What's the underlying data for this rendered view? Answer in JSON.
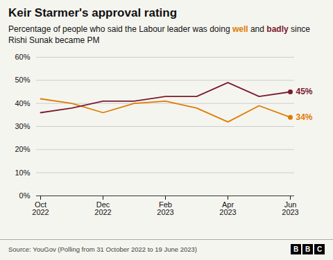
{
  "chart_data": {
    "type": "line",
    "title": "Keir Starmer's approval rating",
    "subtitle": "Percentage of people who said the Labour leader was doing well and badly since Rishi Sunak became PM",
    "source": "Source: YouGov (Polling from 31 October 2022 to 19 June 2023)",
    "annotations": [
      "BBC"
    ],
    "categories": [
      "Oct\n2022",
      null,
      "Dec\n2022",
      null,
      "Feb\n2023",
      null,
      "Apr\n2023",
      null,
      "Jun\n2023"
    ],
    "series": [
      {
        "name": "well",
        "color": "#e07b00",
        "values": [
          42,
          40,
          36,
          40,
          41,
          38,
          32,
          39,
          34
        ],
        "value_labels": [
          null,
          null,
          null,
          null,
          null,
          null,
          null,
          null,
          "34%"
        ]
      },
      {
        "name": "badly",
        "color": "#7b1a2e",
        "values": [
          36,
          38,
          41,
          41,
          43,
          43,
          49,
          43,
          45
        ],
        "value_labels": [
          null,
          null,
          null,
          null,
          null,
          null,
          null,
          null,
          "45%"
        ]
      }
    ],
    "ylim": [
      0,
      60
    ],
    "yticks": [
      {
        "value": 0,
        "label": "0%"
      },
      {
        "value": 10,
        "label": "10%"
      },
      {
        "value": 20,
        "label": "20%"
      },
      {
        "value": 30,
        "label": "30%"
      },
      {
        "value": 40,
        "label": "40%"
      },
      {
        "value": 50,
        "label": "50%"
      },
      {
        "value": 60,
        "label": "60%"
      }
    ],
    "grid": true
  }
}
